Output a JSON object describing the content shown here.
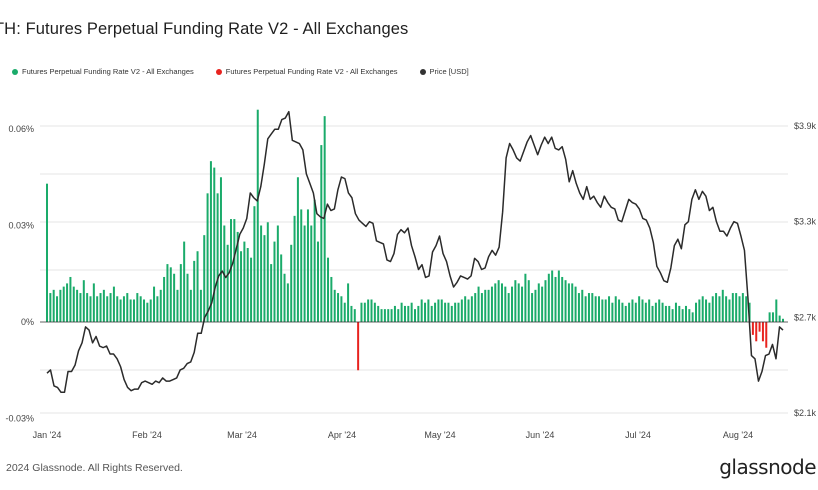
{
  "title": "TH: Futures Perpetual Funding Rate V2 - All Exchanges",
  "legend": [
    {
      "label": "Futures Perpetual Funding Rate V2 - All Exchanges",
      "color": "#1aab6a"
    },
    {
      "label": "Futures Perpetual Funding Rate V2 - All Exchanges",
      "color": "#e8231f"
    },
    {
      "label": "Price [USD]",
      "color": "#333333"
    }
  ],
  "footer": "2024 Glassnode. All Rights Reserved.",
  "brand": "glassnode",
  "colors": {
    "positive": "#1aab6a",
    "negative": "#e8231f",
    "price": "#2b2b2b",
    "grid": "#e6e6e6"
  },
  "chart_data": {
    "type": "bar",
    "x_ticks": [
      "Jan '24",
      "Feb '24",
      "Mar '24",
      "Apr '24",
      "May '24",
      "Jun '24",
      "Jul '24",
      "Aug '24"
    ],
    "y_left_ticks": [
      "0.06%",
      "0.03%",
      "0%",
      "-0.03%"
    ],
    "y_left_values": [
      0.06,
      0.03,
      0,
      -0.03
    ],
    "y_right_ticks": [
      "$3.9k",
      "$3.3k",
      "$2.7k",
      "$2.1k"
    ],
    "y_right_values": [
      3900,
      3300,
      2700,
      2100
    ],
    "ylim_left": [
      -0.03,
      0.06
    ],
    "ylim_right": [
      2100,
      3900
    ],
    "funding_rate": [
      0.043,
      0.009,
      0.01,
      0.008,
      0.01,
      0.011,
      0.012,
      0.014,
      0.011,
      0.01,
      0.009,
      0.013,
      0.009,
      0.008,
      0.012,
      0.008,
      0.009,
      0.01,
      0.008,
      0.009,
      0.011,
      0.008,
      0.007,
      0.008,
      0.009,
      0.007,
      0.007,
      0.009,
      0.008,
      0.007,
      0.006,
      0.007,
      0.011,
      0.008,
      0.01,
      0.014,
      0.018,
      0.017,
      0.015,
      0.01,
      0.018,
      0.025,
      0.015,
      0.01,
      0.019,
      0.022,
      0.01,
      0.027,
      0.04,
      0.05,
      0.048,
      0.04,
      0.045,
      0.03,
      0.024,
      0.032,
      0.032,
      0.028,
      0.022,
      0.025,
      0.023,
      0.02,
      0.036,
      0.066,
      0.03,
      0.027,
      0.031,
      0.018,
      0.025,
      0.03,
      0.021,
      0.015,
      0.012,
      0.024,
      0.033,
      0.045,
      0.035,
      0.03,
      0.035,
      0.03,
      0.038,
      0.025,
      0.055,
      0.064,
      0.02,
      0.014,
      0.01,
      0.009,
      0.008,
      0.006,
      0.012,
      0.005,
      0.004,
      -0.015,
      0.006,
      0.006,
      0.007,
      0.007,
      0.006,
      0.005,
      0.004,
      0.004,
      0.004,
      0.004,
      0.005,
      0.004,
      0.006,
      0.005,
      0.005,
      0.006,
      0.004,
      0.005,
      0.007,
      0.006,
      0.007,
      0.005,
      0.006,
      0.007,
      0.007,
      0.006,
      0.006,
      0.005,
      0.006,
      0.006,
      0.007,
      0.008,
      0.007,
      0.008,
      0.009,
      0.011,
      0.009,
      0.01,
      0.01,
      0.011,
      0.012,
      0.013,
      0.012,
      0.011,
      0.009,
      0.011,
      0.013,
      0.012,
      0.011,
      0.015,
      0.013,
      0.009,
      0.01,
      0.012,
      0.011,
      0.013,
      0.015,
      0.016,
      0.014,
      0.016,
      0.014,
      0.013,
      0.012,
      0.012,
      0.011,
      0.009,
      0.01,
      0.008,
      0.009,
      0.009,
      0.008,
      0.008,
      0.007,
      0.007,
      0.008,
      0.006,
      0.008,
      0.007,
      0.006,
      0.005,
      0.006,
      0.007,
      0.006,
      0.008,
      0.007,
      0.006,
      0.007,
      0.005,
      0.006,
      0.007,
      0.006,
      0.005,
      0.005,
      0.004,
      0.006,
      0.005,
      0.004,
      0.005,
      0.004,
      0.003,
      0.006,
      0.007,
      0.008,
      0.007,
      0.006,
      0.008,
      0.009,
      0.008,
      0.01,
      0.008,
      0.007,
      0.009,
      0.009,
      0.008,
      0.009,
      0.008,
      0.006,
      -0.004,
      -0.006,
      -0.003,
      -0.006,
      -0.008,
      0.003,
      0.003,
      0.007,
      0.002,
      0.001
    ],
    "price": [
      2350,
      2370,
      2270,
      2260,
      2230,
      2230,
      2360,
      2360,
      2400,
      2490,
      2540,
      2640,
      2620,
      2540,
      2580,
      2520,
      2510,
      2520,
      2470,
      2470,
      2440,
      2390,
      2310,
      2260,
      2240,
      2250,
      2250,
      2290,
      2300,
      2290,
      2280,
      2300,
      2290,
      2320,
      2300,
      2300,
      2310,
      2320,
      2370,
      2380,
      2410,
      2420,
      2480,
      2600,
      2600,
      2700,
      2740,
      2790,
      2890,
      2960,
      2990,
      2950,
      2980,
      3040,
      3130,
      3220,
      3260,
      3320,
      3480,
      3450,
      3430,
      3520,
      3660,
      3820,
      3850,
      3880,
      3880,
      3940,
      3950,
      3990,
      3810,
      3800,
      3790,
      3750,
      3600,
      3540,
      3480,
      3350,
      3330,
      3320,
      3410,
      3370,
      3380,
      3500,
      3580,
      3570,
      3480,
      3450,
      3350,
      3310,
      3290,
      3270,
      3300,
      3290,
      3180,
      3170,
      3160,
      3060,
      3050,
      3100,
      3220,
      3250,
      3230,
      3260,
      3150,
      3080,
      3000,
      3030,
      2950,
      2960,
      3110,
      3150,
      3210,
      3100,
      3050,
      2960,
      2890,
      2920,
      2960,
      2950,
      2940,
      2960,
      3070,
      3050,
      3000,
      3010,
      3080,
      3120,
      3090,
      3140,
      3360,
      3700,
      3790,
      3750,
      3700,
      3680,
      3740,
      3800,
      3840,
      3780,
      3720,
      3780,
      3830,
      3790,
      3830,
      3760,
      3750,
      3770,
      3690,
      3550,
      3620,
      3540,
      3480,
      3440,
      3520,
      3440,
      3460,
      3420,
      3390,
      3460,
      3420,
      3390,
      3380,
      3310,
      3300,
      3370,
      3440,
      3420,
      3410,
      3380,
      3320,
      3310,
      3260,
      3170,
      3020,
      2980,
      2930,
      2920,
      3010,
      3150,
      3190,
      3130,
      3280,
      3300,
      3440,
      3500,
      3440,
      3490,
      3460,
      3370,
      3390,
      3300,
      3240,
      3240,
      3210,
      3260,
      3300,
      3290,
      3210,
      3120,
      2820,
      2460,
      2440,
      2300,
      2360,
      2460,
      2470,
      2530,
      2440,
      2640,
      2620
    ]
  }
}
